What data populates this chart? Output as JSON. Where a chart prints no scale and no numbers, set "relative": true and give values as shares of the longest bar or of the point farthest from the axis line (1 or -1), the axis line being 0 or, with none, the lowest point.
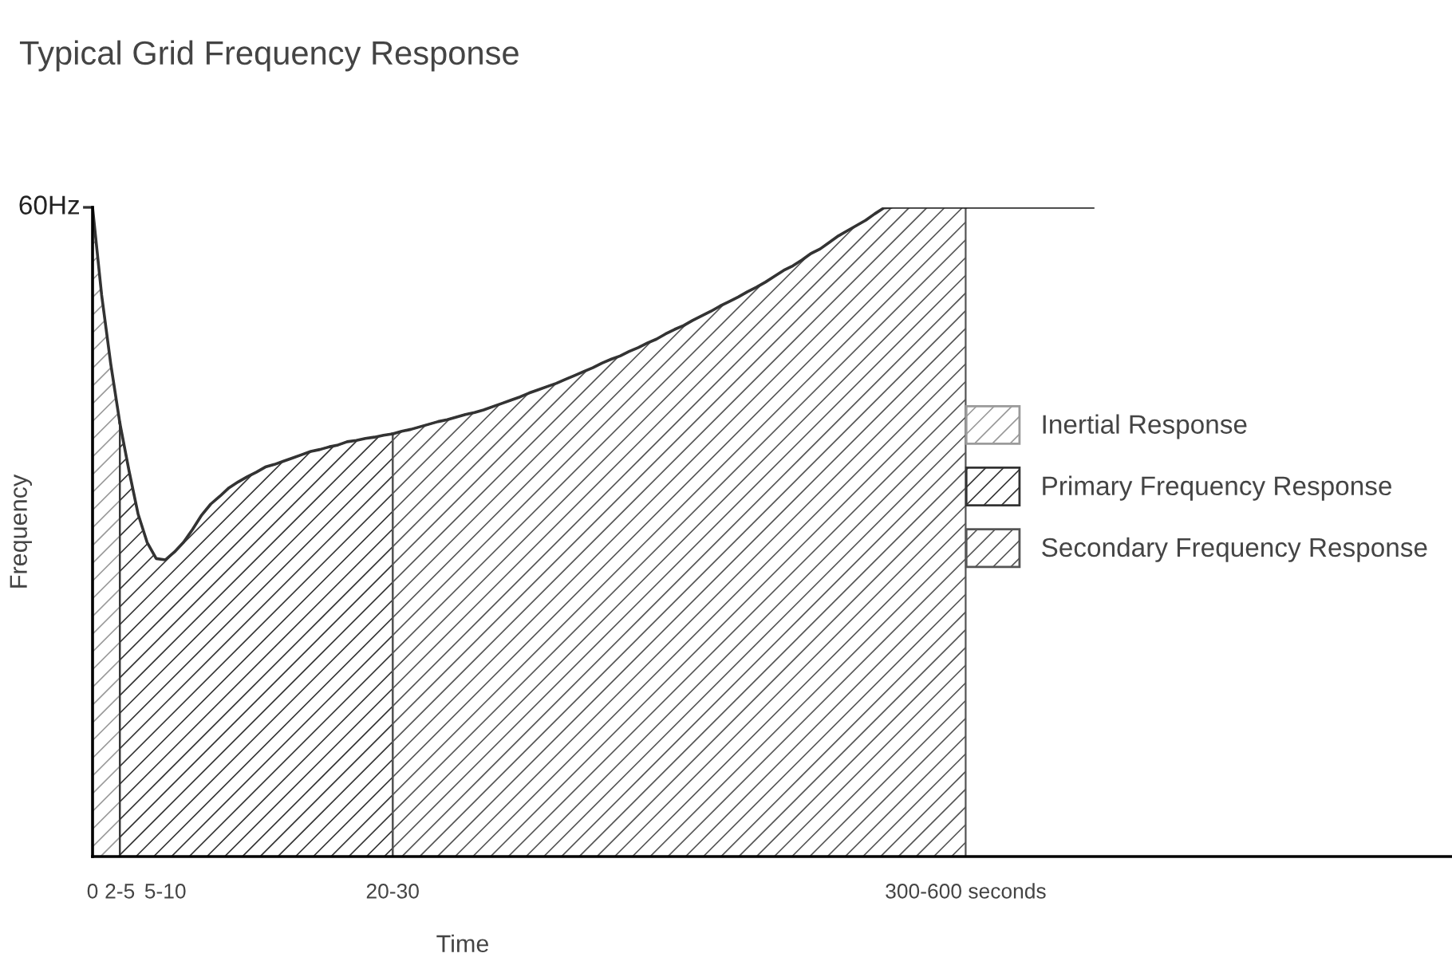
{
  "chart_data": {
    "type": "area",
    "title": "Typical Grid Frequency Response",
    "xlabel": "Time",
    "ylabel": "Frequency",
    "relative": true,
    "legend": "right",
    "grid": false,
    "annotations": [
      "60Hz"
    ],
    "categories": [
      "0",
      null,
      null,
      "2-5",
      null,
      null,
      null,
      null,
      "5-10",
      null,
      null,
      null,
      null,
      null,
      null,
      null,
      null,
      null,
      null,
      null,
      null,
      null,
      null,
      null,
      null,
      null,
      null,
      null,
      null,
      null,
      null,
      null,
      null,
      "20-30",
      null,
      null,
      null,
      null,
      null,
      null,
      null,
      null,
      null,
      null,
      null,
      null,
      null,
      null,
      null,
      null,
      null,
      null,
      null,
      null,
      null,
      null,
      null,
      null,
      null,
      null,
      null,
      null,
      null,
      null,
      null,
      null,
      null,
      null,
      null,
      null,
      null,
      null,
      null,
      null,
      null,
      null,
      null,
      null,
      null,
      null,
      null,
      null,
      null,
      null,
      null,
      null,
      null,
      null,
      null,
      null,
      null,
      null,
      null,
      null,
      null,
      null,
      "300-600 seconds",
      null,
      null,
      null,
      null,
      null,
      null,
      null,
      null,
      null,
      null,
      null,
      null,
      null,
      null
    ],
    "series": [
      {
        "name": "Inertial Response",
        "color": "#9a9a9a",
        "values": [
          1.0,
          0.865,
          0.759,
          0.668,
          null,
          null,
          null,
          null,
          null,
          null,
          null,
          null,
          null,
          null,
          null,
          null,
          null,
          null,
          null,
          null,
          null,
          null,
          null,
          null,
          null,
          null,
          null,
          null,
          null,
          null,
          null,
          null,
          null,
          null,
          null,
          null,
          null,
          null,
          null,
          null,
          null,
          null,
          null,
          null,
          null,
          null,
          null,
          null,
          null,
          null,
          null,
          null,
          null,
          null,
          null,
          null,
          null,
          null,
          null,
          null,
          null,
          null,
          null,
          null,
          null,
          null,
          null,
          null,
          null,
          null,
          null,
          null,
          null,
          null,
          null,
          null,
          null,
          null,
          null,
          null,
          null,
          null,
          null,
          null,
          null,
          null,
          null,
          null,
          null,
          null,
          null,
          null,
          null,
          null,
          null,
          null,
          null,
          null,
          null,
          null,
          null,
          null,
          null,
          null,
          null,
          null,
          null,
          null,
          null,
          null,
          null
        ]
      },
      {
        "name": "Primary Frequency Response",
        "color": "#333333",
        "values": [
          null,
          null,
          null,
          0.668,
          0.595,
          0.528,
          0.484,
          0.459,
          0.457,
          0.469,
          0.484,
          0.504,
          0.526,
          0.543,
          0.555,
          0.568,
          0.577,
          0.585,
          0.592,
          0.6,
          0.604,
          0.609,
          0.614,
          0.619,
          0.624,
          0.627,
          0.631,
          0.634,
          0.639,
          0.641,
          0.644,
          0.646,
          0.649,
          0.651,
          null,
          null,
          null,
          null,
          null,
          null,
          null,
          null,
          null,
          null,
          null,
          null,
          null,
          null,
          null,
          null,
          null,
          null,
          null,
          null,
          null,
          null,
          null,
          null,
          null,
          null,
          null,
          null,
          null,
          null,
          null,
          null,
          null,
          null,
          null,
          null,
          null,
          null,
          null,
          null,
          null,
          null,
          null,
          null,
          null,
          null,
          null,
          null,
          null,
          null,
          null,
          null,
          null,
          null,
          null,
          null,
          null,
          null,
          null,
          null,
          null,
          null,
          null,
          null,
          null,
          null,
          null,
          null,
          null,
          null,
          null,
          null,
          null,
          null,
          null,
          null,
          null
        ]
      },
      {
        "name": "Secondary Frequency Response",
        "color": "#555555",
        "values": [
          null,
          null,
          null,
          null,
          null,
          null,
          null,
          null,
          null,
          null,
          null,
          null,
          null,
          null,
          null,
          null,
          null,
          null,
          null,
          null,
          null,
          null,
          null,
          null,
          null,
          null,
          null,
          null,
          null,
          null,
          null,
          null,
          null,
          0.651,
          0.655,
          0.658,
          0.662,
          0.666,
          0.67,
          0.673,
          0.677,
          0.681,
          0.684,
          0.688,
          0.693,
          0.698,
          0.703,
          0.708,
          0.714,
          0.719,
          0.724,
          0.729,
          0.735,
          0.741,
          0.747,
          0.753,
          0.76,
          0.766,
          0.771,
          0.778,
          0.784,
          0.791,
          0.797,
          0.805,
          0.812,
          0.818,
          0.826,
          0.833,
          0.84,
          0.848,
          0.855,
          0.862,
          0.87,
          0.877,
          0.885,
          0.894,
          0.903,
          0.91,
          0.919,
          0.929,
          0.936,
          0.946,
          0.956,
          0.964,
          0.972,
          0.98,
          0.99,
          0.999,
          1.0,
          1.0,
          1.0,
          1.0,
          1.0,
          1.0,
          1.0,
          1.0,
          1.0,
          null,
          null,
          null,
          null,
          null,
          null,
          null,
          null,
          null,
          null,
          null,
          null,
          null,
          null
        ]
      },
      {
        "type": "line",
        "color": "#333333",
        "values": [
          null,
          null,
          null,
          null,
          null,
          null,
          null,
          null,
          null,
          null,
          null,
          null,
          null,
          null,
          null,
          null,
          null,
          null,
          null,
          null,
          null,
          null,
          null,
          null,
          null,
          null,
          null,
          null,
          null,
          null,
          null,
          null,
          null,
          null,
          null,
          null,
          null,
          null,
          null,
          null,
          null,
          null,
          null,
          null,
          null,
          null,
          null,
          null,
          null,
          null,
          null,
          null,
          null,
          null,
          null,
          null,
          null,
          null,
          null,
          null,
          null,
          null,
          null,
          null,
          null,
          null,
          null,
          null,
          null,
          null,
          null,
          null,
          null,
          null,
          null,
          null,
          null,
          null,
          null,
          null,
          null,
          null,
          null,
          null,
          null,
          null,
          null,
          null,
          null,
          null,
          null,
          null,
          null,
          null,
          null,
          null,
          1.0,
          1.0,
          1.0,
          1.0,
          1.0,
          1.0,
          1.0,
          1.0,
          1.0,
          1.0,
          1.0,
          1.0,
          1.0,
          1.0,
          1.0
        ]
      }
    ]
  }
}
